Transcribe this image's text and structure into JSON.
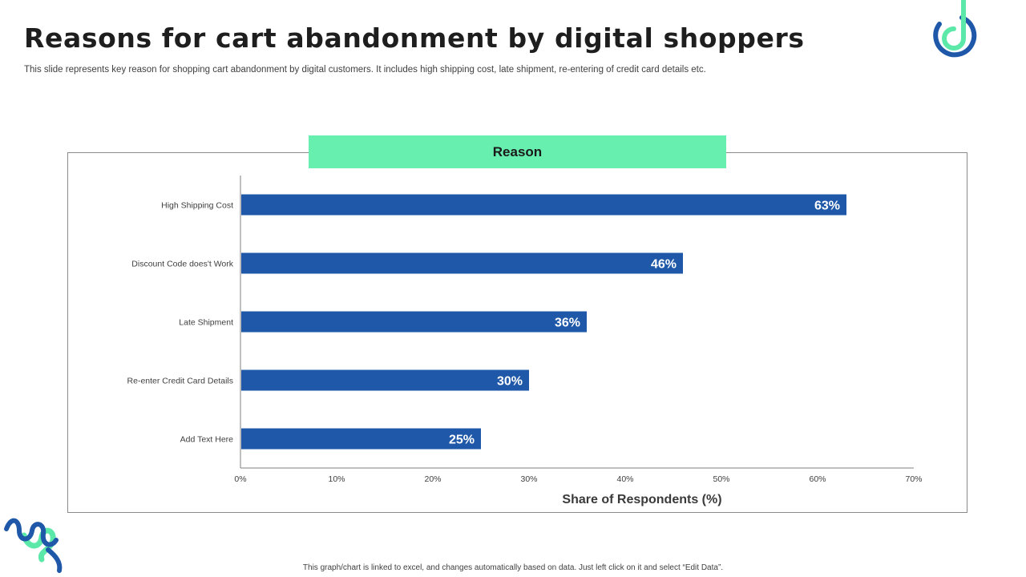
{
  "slide": {
    "title": "Reasons for cart abandonment by digital shoppers",
    "subtitle": "This slide represents  key reason for shopping cart abandonment by digital customers. It includes high shipping cost, late shipment, re-entering of credit card details etc.",
    "footer_note": "This graph/chart is linked to excel, and changes automatically based on data. Just left click on it and select “Edit Data”."
  },
  "colors": {
    "bar": "#1f58a8",
    "header": "#67efb0",
    "logo_blue": "#1f58a8",
    "logo_green": "#5ce8a8"
  },
  "chart_data": {
    "type": "bar",
    "orientation": "horizontal",
    "title": "Reason",
    "categories": [
      "High Shipping Cost",
      "Discount Code does't Work",
      "Late Shipment",
      "Re-enter Credit Card Details",
      "Add Text Here"
    ],
    "values": [
      63,
      46,
      36,
      30,
      25
    ],
    "value_labels": [
      "63%",
      "46%",
      "36%",
      "30%",
      "25%"
    ],
    "xlabel": "Share of Respondents (%)",
    "ylabel": "",
    "xlim": [
      0,
      70
    ],
    "x_ticks": [
      0,
      10,
      20,
      30,
      40,
      50,
      60,
      70
    ],
    "x_tick_labels": [
      "0%",
      "10%",
      "20%",
      "30%",
      "40%",
      "50%",
      "60%",
      "70%"
    ],
    "grid": false,
    "legend": "none"
  }
}
